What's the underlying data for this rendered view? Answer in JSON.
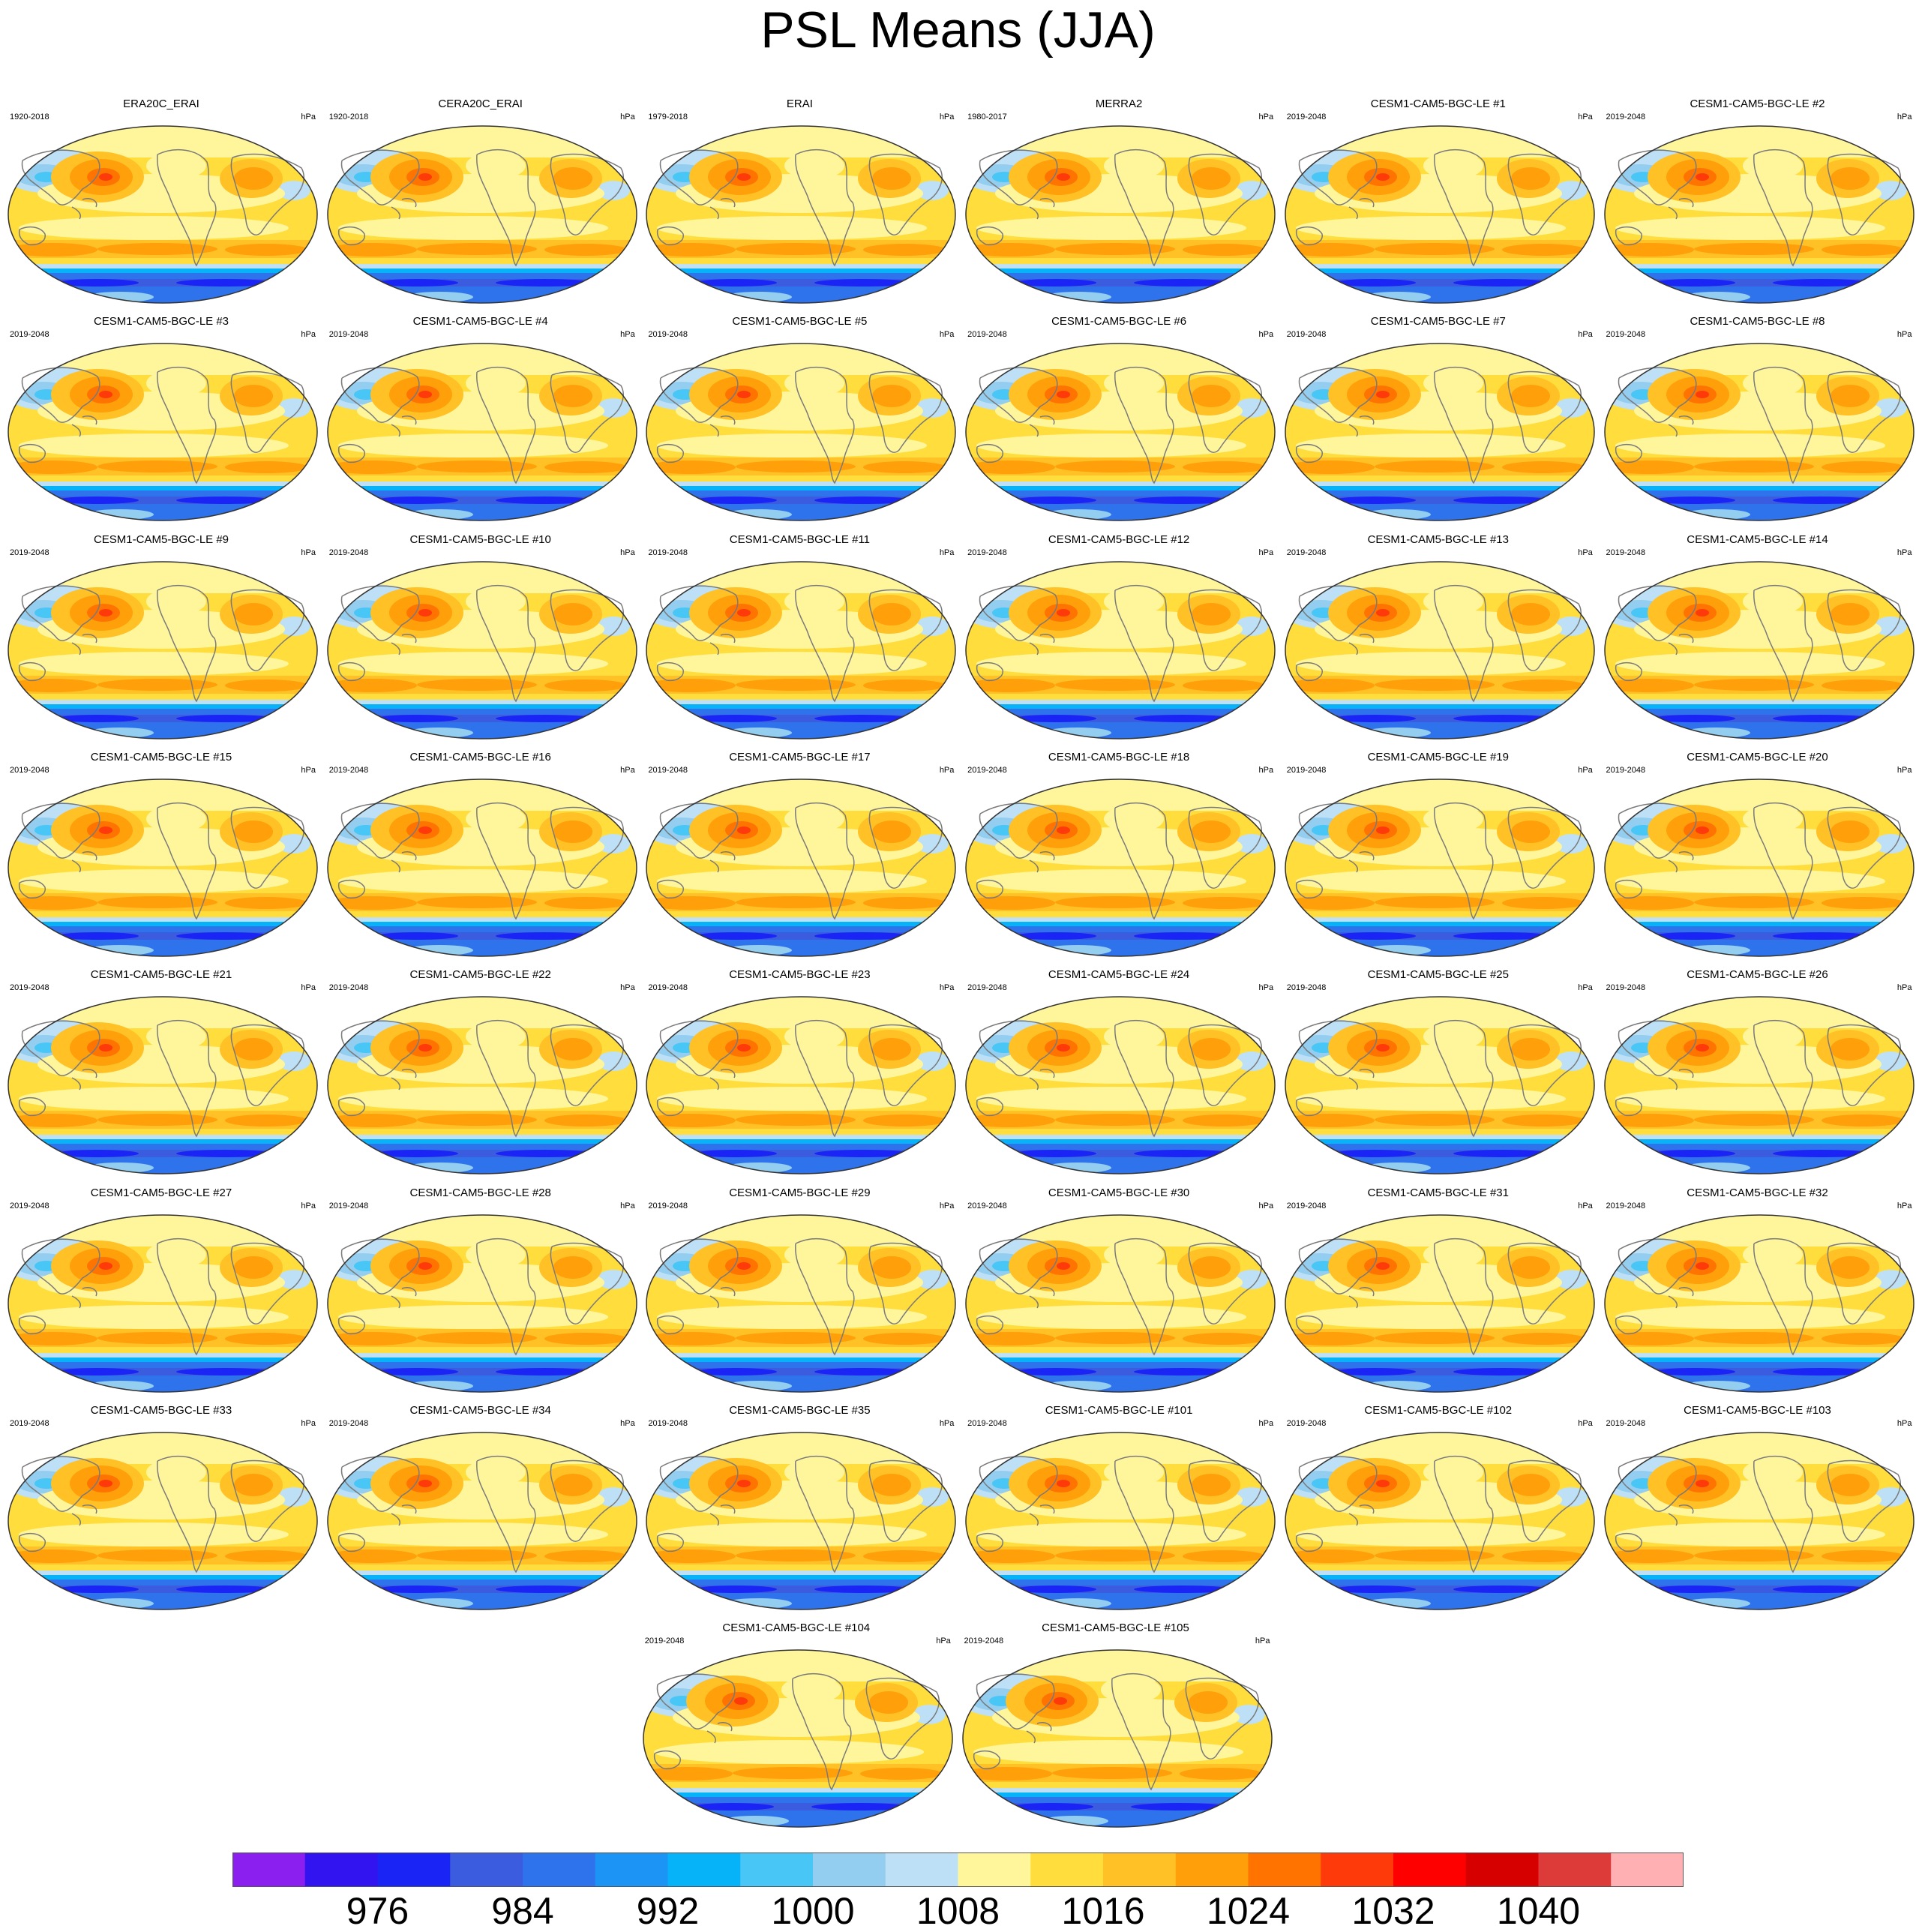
{
  "title": "PSL Means (JJA)",
  "units": "hPa",
  "colorbar": {
    "colors": [
      "#8b1ff0",
      "#3214f0",
      "#1a25f5",
      "#3c5ce0",
      "#2e73ec",
      "#1b94f5",
      "#06b2f8",
      "#48c6f5",
      "#93cdef",
      "#bde0f6",
      "#fff69b",
      "#ffdd3d",
      "#ffc125",
      "#ff9f0a",
      "#ff7300",
      "#ff3a0a",
      "#ff0000",
      "#d60000",
      "#dd3a3a",
      "#ffb0b3"
    ],
    "labels": [
      "976",
      "984",
      "992",
      "1000",
      "1008",
      "1016",
      "1024",
      "1032",
      "1040"
    ]
  },
  "panels": [
    {
      "title": "ERA20C_ERAI",
      "period": "1920-2018"
    },
    {
      "title": "CERA20C_ERAI",
      "period": "1920-2018"
    },
    {
      "title": "ERAI",
      "period": "1979-2018"
    },
    {
      "title": "MERRA2",
      "period": "1980-2017"
    },
    {
      "title": "CESM1-CAM5-BGC-LE #1",
      "period": "2019-2048"
    },
    {
      "title": "CESM1-CAM5-BGC-LE #2",
      "period": "2019-2048"
    },
    {
      "title": "CESM1-CAM5-BGC-LE #3",
      "period": "2019-2048"
    },
    {
      "title": "CESM1-CAM5-BGC-LE #4",
      "period": "2019-2048"
    },
    {
      "title": "CESM1-CAM5-BGC-LE #5",
      "period": "2019-2048"
    },
    {
      "title": "CESM1-CAM5-BGC-LE #6",
      "period": "2019-2048"
    },
    {
      "title": "CESM1-CAM5-BGC-LE #7",
      "period": "2019-2048"
    },
    {
      "title": "CESM1-CAM5-BGC-LE #8",
      "period": "2019-2048"
    },
    {
      "title": "CESM1-CAM5-BGC-LE #9",
      "period": "2019-2048"
    },
    {
      "title": "CESM1-CAM5-BGC-LE #10",
      "period": "2019-2048"
    },
    {
      "title": "CESM1-CAM5-BGC-LE #11",
      "period": "2019-2048"
    },
    {
      "title": "CESM1-CAM5-BGC-LE #12",
      "period": "2019-2048"
    },
    {
      "title": "CESM1-CAM5-BGC-LE #13",
      "period": "2019-2048"
    },
    {
      "title": "CESM1-CAM5-BGC-LE #14",
      "period": "2019-2048"
    },
    {
      "title": "CESM1-CAM5-BGC-LE #15",
      "period": "2019-2048"
    },
    {
      "title": "CESM1-CAM5-BGC-LE #16",
      "period": "2019-2048"
    },
    {
      "title": "CESM1-CAM5-BGC-LE #17",
      "period": "2019-2048"
    },
    {
      "title": "CESM1-CAM5-BGC-LE #18",
      "period": "2019-2048"
    },
    {
      "title": "CESM1-CAM5-BGC-LE #19",
      "period": "2019-2048"
    },
    {
      "title": "CESM1-CAM5-BGC-LE #20",
      "period": "2019-2048"
    },
    {
      "title": "CESM1-CAM5-BGC-LE #21",
      "period": "2019-2048"
    },
    {
      "title": "CESM1-CAM5-BGC-LE #22",
      "period": "2019-2048"
    },
    {
      "title": "CESM1-CAM5-BGC-LE #23",
      "period": "2019-2048"
    },
    {
      "title": "CESM1-CAM5-BGC-LE #24",
      "period": "2019-2048"
    },
    {
      "title": "CESM1-CAM5-BGC-LE #25",
      "period": "2019-2048"
    },
    {
      "title": "CESM1-CAM5-BGC-LE #26",
      "period": "2019-2048"
    },
    {
      "title": "CESM1-CAM5-BGC-LE #27",
      "period": "2019-2048"
    },
    {
      "title": "CESM1-CAM5-BGC-LE #28",
      "period": "2019-2048"
    },
    {
      "title": "CESM1-CAM5-BGC-LE #29",
      "period": "2019-2048"
    },
    {
      "title": "CESM1-CAM5-BGC-LE #30",
      "period": "2019-2048"
    },
    {
      "title": "CESM1-CAM5-BGC-LE #31",
      "period": "2019-2048"
    },
    {
      "title": "CESM1-CAM5-BGC-LE #32",
      "period": "2019-2048"
    },
    {
      "title": "CESM1-CAM5-BGC-LE #33",
      "period": "2019-2048"
    },
    {
      "title": "CESM1-CAM5-BGC-LE #34",
      "period": "2019-2048"
    },
    {
      "title": "CESM1-CAM5-BGC-LE #35",
      "period": "2019-2048"
    },
    {
      "title": "CESM1-CAM5-BGC-LE #101",
      "period": "2019-2048"
    },
    {
      "title": "CESM1-CAM5-BGC-LE #102",
      "period": "2019-2048"
    },
    {
      "title": "CESM1-CAM5-BGC-LE #103",
      "period": "2019-2048"
    },
    {
      "title": "CESM1-CAM5-BGC-LE #104",
      "period": "2019-2048"
    },
    {
      "title": "CESM1-CAM5-BGC-LE #105",
      "period": "2019-2048"
    }
  ]
}
